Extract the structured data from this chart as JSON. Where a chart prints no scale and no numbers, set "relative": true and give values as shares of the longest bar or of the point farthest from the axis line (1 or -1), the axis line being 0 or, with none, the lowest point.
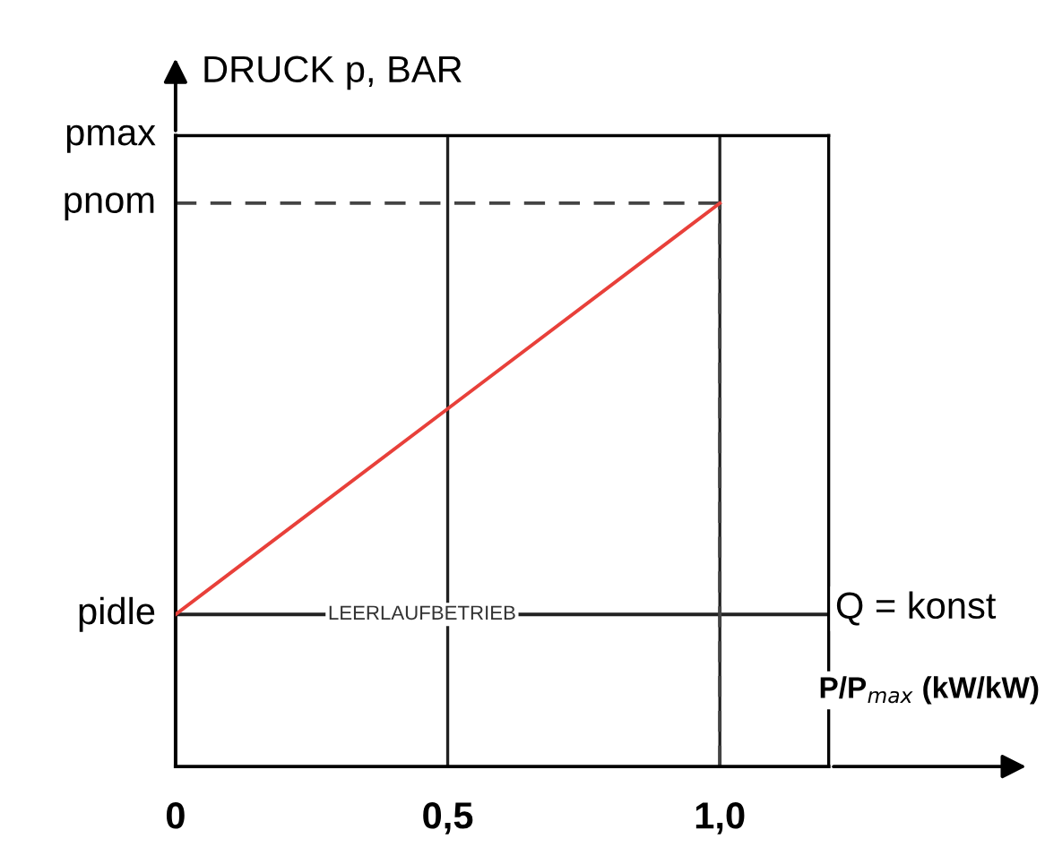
{
  "chart_data": {
    "type": "line",
    "relative": true,
    "ylabel": "DRUCK p, BAR",
    "xlabel": "P/P$_{max}$ (kW/kW)",
    "x": [
      0,
      1.0
    ],
    "xlim": [
      0,
      1.2
    ],
    "xticks": [
      {
        "value": 0,
        "label": "0"
      },
      {
        "value": 0.5,
        "label": "0,5"
      },
      {
        "value": 1.0,
        "label": "1,0"
      }
    ],
    "series": [
      {
        "color": "#e8403a",
        "values": [
          0.27,
          1
        ]
      }
    ],
    "ref_lines": [
      {
        "axis": "y",
        "value": 1.12,
        "label": "pmax",
        "color": "#222222",
        "line_style": "solid"
      },
      {
        "axis": "y",
        "value": 1,
        "label": "pnom",
        "color": "#444444",
        "line_style": "dashed"
      },
      {
        "axis": "y",
        "value": 0.27,
        "label": "pidle",
        "color": "#222222",
        "line_style": "solid"
      },
      {
        "axis": "x",
        "value": 1.0,
        "color": "#444444",
        "line_style": "dashed"
      }
    ],
    "annotations": [
      {
        "text": "LEERLAUFBETRIEB",
        "x": 0.28,
        "y": 0.27
      },
      "Q = konst"
    ],
    "grid": true,
    "marker": "none",
    "line_style": "solid"
  }
}
